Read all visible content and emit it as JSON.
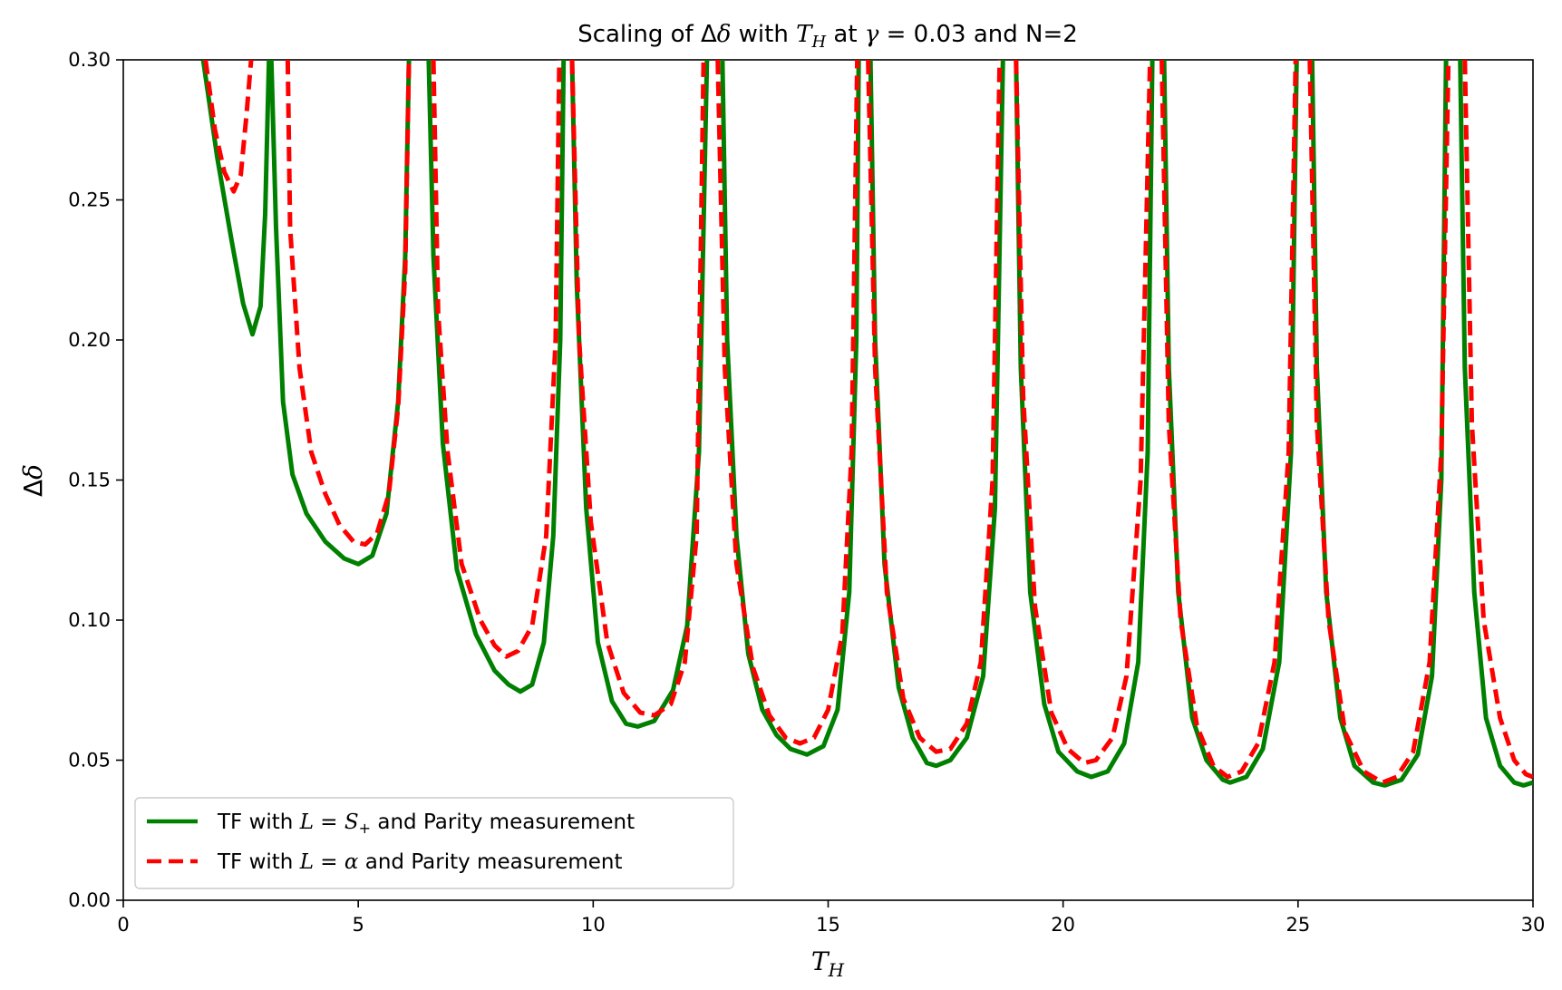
{
  "chart_data": {
    "type": "line",
    "title": "Scaling of Δδ with T_H at γ = 0.03 and N=2",
    "title_parts": {
      "a": "Scaling of Δ",
      "b": "δ",
      "c": " with ",
      "d": "T",
      "e": "H",
      "f": " at ",
      "g": "γ",
      "h": " = 0.03 and N=2"
    },
    "xlabel": "T_H",
    "xlabel_parts": {
      "main": "T",
      "sub": "H"
    },
    "ylabel": "Δδ",
    "ylabel_parts": {
      "a": "Δ",
      "b": "δ"
    },
    "xlim": [
      0,
      30
    ],
    "ylim": [
      0,
      0.3
    ],
    "x_ticks": [
      0,
      5,
      10,
      15,
      20,
      25,
      30
    ],
    "x_tick_labels": [
      "0",
      "5",
      "10",
      "15",
      "20",
      "25",
      "30"
    ],
    "y_ticks": [
      0,
      0.05,
      0.1,
      0.15,
      0.2,
      0.25,
      0.3
    ],
    "y_tick_labels": [
      "0.00",
      "0.05",
      "0.10",
      "0.15",
      "0.20",
      "0.25",
      "0.30"
    ],
    "grid": false,
    "legend_position": "lower-left",
    "series": [
      {
        "name": "TF with L = S+ and Parity measurement",
        "legend_parts": {
          "a": "TF with ",
          "b": "L",
          "c": " = ",
          "d": "S",
          "e": "+",
          "f": "  and Parity measurement"
        },
        "color": "#008000",
        "style": "solid",
        "points": [
          [
            1.7,
            0.3
          ],
          [
            2.0,
            0.265
          ],
          [
            2.3,
            0.236
          ],
          [
            2.55,
            0.213
          ],
          [
            2.75,
            0.202
          ],
          [
            2.92,
            0.212
          ],
          [
            3.02,
            0.245
          ],
          [
            3.1,
            0.3
          ],
          [
            3.15,
            0.3
          ],
          [
            3.25,
            0.24
          ],
          [
            3.4,
            0.178
          ],
          [
            3.6,
            0.152
          ],
          [
            3.9,
            0.138
          ],
          [
            4.3,
            0.128
          ],
          [
            4.7,
            0.122
          ],
          [
            5.0,
            0.12
          ],
          [
            5.3,
            0.123
          ],
          [
            5.6,
            0.138
          ],
          [
            5.85,
            0.178
          ],
          [
            6.0,
            0.23
          ],
          [
            6.08,
            0.3
          ],
          [
            6.5,
            0.3
          ],
          [
            6.6,
            0.23
          ],
          [
            6.8,
            0.163
          ],
          [
            7.1,
            0.118
          ],
          [
            7.5,
            0.095
          ],
          [
            7.9,
            0.082
          ],
          [
            8.2,
            0.077
          ],
          [
            8.45,
            0.0745
          ],
          [
            8.7,
            0.077
          ],
          [
            8.95,
            0.092
          ],
          [
            9.15,
            0.13
          ],
          [
            9.3,
            0.2
          ],
          [
            9.37,
            0.3
          ],
          [
            9.55,
            0.3
          ],
          [
            9.65,
            0.22
          ],
          [
            9.85,
            0.14
          ],
          [
            10.1,
            0.092
          ],
          [
            10.4,
            0.071
          ],
          [
            10.7,
            0.063
          ],
          [
            10.95,
            0.062
          ],
          [
            11.3,
            0.064
          ],
          [
            11.7,
            0.075
          ],
          [
            12.0,
            0.098
          ],
          [
            12.25,
            0.16
          ],
          [
            12.42,
            0.3
          ],
          [
            12.75,
            0.3
          ],
          [
            12.85,
            0.2
          ],
          [
            13.05,
            0.13
          ],
          [
            13.3,
            0.088
          ],
          [
            13.6,
            0.068
          ],
          [
            13.9,
            0.059
          ],
          [
            14.2,
            0.054
          ],
          [
            14.55,
            0.052
          ],
          [
            14.9,
            0.055
          ],
          [
            15.2,
            0.068
          ],
          [
            15.45,
            0.11
          ],
          [
            15.6,
            0.2
          ],
          [
            15.65,
            0.3
          ],
          [
            15.9,
            0.3
          ],
          [
            16.0,
            0.2
          ],
          [
            16.2,
            0.12
          ],
          [
            16.5,
            0.076
          ],
          [
            16.8,
            0.058
          ],
          [
            17.1,
            0.049
          ],
          [
            17.3,
            0.048
          ],
          [
            17.6,
            0.05
          ],
          [
            17.95,
            0.058
          ],
          [
            18.3,
            0.08
          ],
          [
            18.55,
            0.14
          ],
          [
            18.72,
            0.3
          ],
          [
            19.0,
            0.3
          ],
          [
            19.1,
            0.19
          ],
          [
            19.3,
            0.11
          ],
          [
            19.6,
            0.07
          ],
          [
            19.9,
            0.053
          ],
          [
            20.3,
            0.046
          ],
          [
            20.6,
            0.044
          ],
          [
            20.95,
            0.046
          ],
          [
            21.3,
            0.056
          ],
          [
            21.6,
            0.085
          ],
          [
            21.8,
            0.16
          ],
          [
            21.9,
            0.3
          ],
          [
            22.15,
            0.3
          ],
          [
            22.25,
            0.19
          ],
          [
            22.45,
            0.11
          ],
          [
            22.75,
            0.065
          ],
          [
            23.05,
            0.05
          ],
          [
            23.4,
            0.043
          ],
          [
            23.55,
            0.042
          ],
          [
            23.9,
            0.044
          ],
          [
            24.25,
            0.054
          ],
          [
            24.6,
            0.085
          ],
          [
            24.85,
            0.16
          ],
          [
            24.97,
            0.3
          ],
          [
            25.3,
            0.3
          ],
          [
            25.4,
            0.19
          ],
          [
            25.6,
            0.11
          ],
          [
            25.9,
            0.065
          ],
          [
            26.2,
            0.048
          ],
          [
            26.6,
            0.042
          ],
          [
            26.85,
            0.041
          ],
          [
            27.2,
            0.043
          ],
          [
            27.55,
            0.052
          ],
          [
            27.85,
            0.08
          ],
          [
            28.05,
            0.15
          ],
          [
            28.15,
            0.3
          ],
          [
            28.45,
            0.3
          ],
          [
            28.55,
            0.19
          ],
          [
            28.75,
            0.11
          ],
          [
            29.0,
            0.065
          ],
          [
            29.3,
            0.048
          ],
          [
            29.6,
            0.042
          ],
          [
            29.8,
            0.041
          ],
          [
            30.0,
            0.042
          ]
        ]
      },
      {
        "name": "TF with L = α and Parity measurement",
        "legend_parts": {
          "a": "TF with ",
          "b": "L",
          "c": " = ",
          "d": "α",
          "e": " and Parity measurement"
        },
        "color": "#ff0000",
        "style": "dashed",
        "points": [
          [
            1.75,
            0.3
          ],
          [
            1.95,
            0.275
          ],
          [
            2.15,
            0.26
          ],
          [
            2.35,
            0.253
          ],
          [
            2.5,
            0.259
          ],
          [
            2.62,
            0.28
          ],
          [
            2.72,
            0.3
          ],
          [
            3.5,
            0.3
          ],
          [
            3.55,
            0.24
          ],
          [
            3.75,
            0.19
          ],
          [
            4.0,
            0.16
          ],
          [
            4.3,
            0.145
          ],
          [
            4.6,
            0.134
          ],
          [
            4.9,
            0.128
          ],
          [
            5.15,
            0.127
          ],
          [
            5.4,
            0.131
          ],
          [
            5.65,
            0.145
          ],
          [
            5.85,
            0.176
          ],
          [
            6.0,
            0.225
          ],
          [
            6.08,
            0.3
          ],
          [
            6.6,
            0.3
          ],
          [
            6.7,
            0.21
          ],
          [
            6.9,
            0.16
          ],
          [
            7.2,
            0.12
          ],
          [
            7.6,
            0.1
          ],
          [
            7.9,
            0.091
          ],
          [
            8.15,
            0.087
          ],
          [
            8.4,
            0.089
          ],
          [
            8.7,
            0.098
          ],
          [
            9.0,
            0.13
          ],
          [
            9.2,
            0.2
          ],
          [
            9.28,
            0.3
          ],
          [
            9.55,
            0.3
          ],
          [
            9.7,
            0.2
          ],
          [
            9.95,
            0.135
          ],
          [
            10.3,
            0.092
          ],
          [
            10.65,
            0.074
          ],
          [
            11.0,
            0.067
          ],
          [
            11.3,
            0.066
          ],
          [
            11.65,
            0.07
          ],
          [
            11.95,
            0.085
          ],
          [
            12.2,
            0.13
          ],
          [
            12.35,
            0.3
          ],
          [
            12.65,
            0.3
          ],
          [
            12.8,
            0.19
          ],
          [
            13.05,
            0.12
          ],
          [
            13.4,
            0.083
          ],
          [
            13.75,
            0.066
          ],
          [
            14.1,
            0.058
          ],
          [
            14.4,
            0.056
          ],
          [
            14.7,
            0.058
          ],
          [
            15.0,
            0.068
          ],
          [
            15.3,
            0.095
          ],
          [
            15.5,
            0.16
          ],
          [
            15.62,
            0.3
          ],
          [
            15.85,
            0.3
          ],
          [
            16.0,
            0.19
          ],
          [
            16.25,
            0.11
          ],
          [
            16.6,
            0.072
          ],
          [
            16.95,
            0.058
          ],
          [
            17.3,
            0.053
          ],
          [
            17.6,
            0.054
          ],
          [
            17.95,
            0.063
          ],
          [
            18.25,
            0.085
          ],
          [
            18.5,
            0.15
          ],
          [
            18.65,
            0.3
          ],
          [
            19.0,
            0.3
          ],
          [
            19.15,
            0.18
          ],
          [
            19.4,
            0.105
          ],
          [
            19.75,
            0.067
          ],
          [
            20.1,
            0.054
          ],
          [
            20.45,
            0.049
          ],
          [
            20.7,
            0.05
          ],
          [
            21.05,
            0.058
          ],
          [
            21.35,
            0.08
          ],
          [
            21.65,
            0.15
          ],
          [
            21.85,
            0.3
          ],
          [
            22.1,
            0.3
          ],
          [
            22.25,
            0.17
          ],
          [
            22.5,
            0.1
          ],
          [
            22.85,
            0.062
          ],
          [
            23.2,
            0.048
          ],
          [
            23.5,
            0.044
          ],
          [
            23.8,
            0.046
          ],
          [
            24.15,
            0.056
          ],
          [
            24.5,
            0.085
          ],
          [
            24.8,
            0.16
          ],
          [
            24.95,
            0.3
          ],
          [
            25.25,
            0.3
          ],
          [
            25.4,
            0.17
          ],
          [
            25.65,
            0.1
          ],
          [
            26.0,
            0.06
          ],
          [
            26.4,
            0.046
          ],
          [
            26.8,
            0.042
          ],
          [
            27.1,
            0.044
          ],
          [
            27.45,
            0.053
          ],
          [
            27.8,
            0.085
          ],
          [
            28.05,
            0.16
          ],
          [
            28.2,
            0.3
          ],
          [
            28.55,
            0.3
          ],
          [
            28.7,
            0.17
          ],
          [
            28.95,
            0.1
          ],
          [
            29.3,
            0.065
          ],
          [
            29.6,
            0.05
          ],
          [
            29.85,
            0.045
          ],
          [
            30.0,
            0.044
          ]
        ]
      }
    ]
  }
}
